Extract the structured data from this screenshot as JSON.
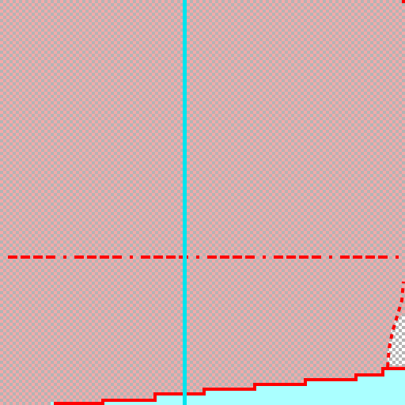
{
  "canvas": {
    "background_color": "#f2aaaa",
    "checker_color": "#b4b4b4",
    "cursor_line_color": "#00e5ee",
    "guide_line_color": "#ff0000",
    "fill_color": "#aaffff",
    "outline_color": "#ff0000",
    "pixel_view": true,
    "has_vertical_cursor_line": true,
    "has_horizontal_dashed_guide": true
  }
}
